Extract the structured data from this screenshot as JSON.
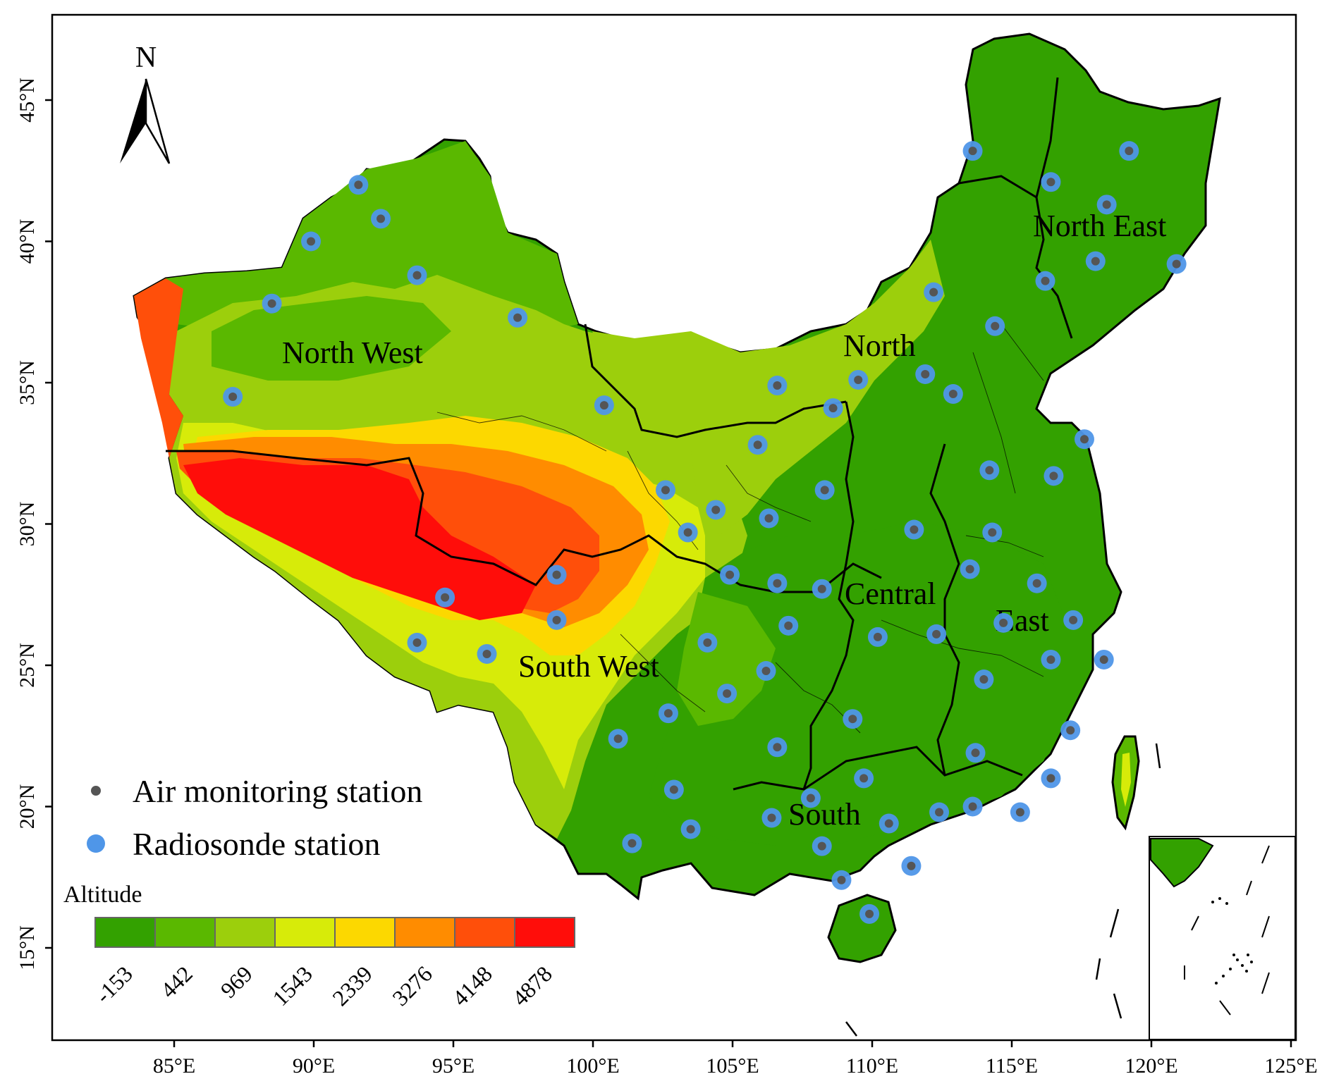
{
  "colors": {
    "alt_0": "#33a100",
    "alt_1": "#5ab800",
    "alt_2": "#9ccf0c",
    "alt_3": "#d7eb09",
    "alt_4": "#fcd800",
    "alt_5": "#ff8c00",
    "alt_6": "#ff4f0a",
    "alt_7": "#ff0d0a",
    "air_station": "#555555",
    "radiosonde": "#4f96e8",
    "boundary": "#000000"
  },
  "north_arrow": {
    "label": "N"
  },
  "lat_axis": [
    "15°N",
    "20°N",
    "25°N",
    "30°N",
    "35°N",
    "40°N",
    "45°N"
  ],
  "lon_axis": [
    "85°E",
    "90°E",
    "95°E",
    "100°E",
    "105°E",
    "110°E",
    "115°E",
    "120°E",
    "125°E"
  ],
  "regions": {
    "north_west": "North West",
    "north": "North",
    "north_east": "North East",
    "central": "Central",
    "east": "East",
    "south_west": "South West",
    "south": "South"
  },
  "legend": {
    "air_station": "Air monitoring station",
    "radiosonde": "Radiosonde station",
    "altitude_title": "Altitude",
    "altitude_breaks": [
      "-153",
      "442",
      "969",
      "1543",
      "2339",
      "3276",
      "4148",
      "4878"
    ]
  },
  "stations": [
    {
      "lon": 91.6,
      "lat": 42.0
    },
    {
      "lon": 92.4,
      "lat": 40.8
    },
    {
      "lon": 89.9,
      "lat": 40.0
    },
    {
      "lon": 93.7,
      "lat": 38.8
    },
    {
      "lon": 88.5,
      "lat": 37.8
    },
    {
      "lon": 97.3,
      "lat": 37.3
    },
    {
      "lon": 87.1,
      "lat": 34.5
    },
    {
      "lon": 100.4,
      "lat": 34.2
    },
    {
      "lon": 113.6,
      "lat": 43.2
    },
    {
      "lon": 119.2,
      "lat": 43.2
    },
    {
      "lon": 116.4,
      "lat": 42.1
    },
    {
      "lon": 118.4,
      "lat": 41.3
    },
    {
      "lon": 118.0,
      "lat": 39.3
    },
    {
      "lon": 120.9,
      "lat": 39.2
    },
    {
      "lon": 116.2,
      "lat": 38.6
    },
    {
      "lon": 112.2,
      "lat": 38.2
    },
    {
      "lon": 114.4,
      "lat": 37.0
    },
    {
      "lon": 106.6,
      "lat": 34.9
    },
    {
      "lon": 109.5,
      "lat": 35.1
    },
    {
      "lon": 111.9,
      "lat": 35.3
    },
    {
      "lon": 112.9,
      "lat": 34.6
    },
    {
      "lon": 108.6,
      "lat": 34.1
    },
    {
      "lon": 117.6,
      "lat": 33.0
    },
    {
      "lon": 105.9,
      "lat": 32.8
    },
    {
      "lon": 102.6,
      "lat": 31.2
    },
    {
      "lon": 108.3,
      "lat": 31.2
    },
    {
      "lon": 114.2,
      "lat": 31.9
    },
    {
      "lon": 116.5,
      "lat": 31.7
    },
    {
      "lon": 104.4,
      "lat": 30.5
    },
    {
      "lon": 106.3,
      "lat": 30.2
    },
    {
      "lon": 103.4,
      "lat": 29.7
    },
    {
      "lon": 111.5,
      "lat": 29.8
    },
    {
      "lon": 114.3,
      "lat": 29.7
    },
    {
      "lon": 98.7,
      "lat": 28.2
    },
    {
      "lon": 104.9,
      "lat": 28.2
    },
    {
      "lon": 106.6,
      "lat": 27.9
    },
    {
      "lon": 108.2,
      "lat": 27.7
    },
    {
      "lon": 113.5,
      "lat": 28.4
    },
    {
      "lon": 115.9,
      "lat": 27.9
    },
    {
      "lon": 94.7,
      "lat": 27.4
    },
    {
      "lon": 98.7,
      "lat": 26.6
    },
    {
      "lon": 107.0,
      "lat": 26.4
    },
    {
      "lon": 117.2,
      "lat": 26.6
    },
    {
      "lon": 93.7,
      "lat": 25.8
    },
    {
      "lon": 96.2,
      "lat": 25.4
    },
    {
      "lon": 104.1,
      "lat": 25.8
    },
    {
      "lon": 110.2,
      "lat": 26.0
    },
    {
      "lon": 112.3,
      "lat": 26.1
    },
    {
      "lon": 114.7,
      "lat": 26.5
    },
    {
      "lon": 116.4,
      "lat": 25.2
    },
    {
      "lon": 118.3,
      "lat": 25.2
    },
    {
      "lon": 106.2,
      "lat": 24.8
    },
    {
      "lon": 114.0,
      "lat": 24.5
    },
    {
      "lon": 104.8,
      "lat": 24.0
    },
    {
      "lon": 102.7,
      "lat": 23.3
    },
    {
      "lon": 109.3,
      "lat": 23.1
    },
    {
      "lon": 100.9,
      "lat": 22.4
    },
    {
      "lon": 117.1,
      "lat": 22.7
    },
    {
      "lon": 106.6,
      "lat": 22.1
    },
    {
      "lon": 113.7,
      "lat": 21.9
    },
    {
      "lon": 109.7,
      "lat": 21.0
    },
    {
      "lon": 116.4,
      "lat": 21.0
    },
    {
      "lon": 102.9,
      "lat": 20.6
    },
    {
      "lon": 107.8,
      "lat": 20.3
    },
    {
      "lon": 113.6,
      "lat": 20.0
    },
    {
      "lon": 106.4,
      "lat": 19.6
    },
    {
      "lon": 110.6,
      "lat": 19.4
    },
    {
      "lon": 112.4,
      "lat": 19.8
    },
    {
      "lon": 115.3,
      "lat": 19.8
    },
    {
      "lon": 103.5,
      "lat": 19.2
    },
    {
      "lon": 101.4,
      "lat": 18.7
    },
    {
      "lon": 108.2,
      "lat": 18.6
    },
    {
      "lon": 111.4,
      "lat": 17.9
    },
    {
      "lon": 108.9,
      "lat": 17.4
    },
    {
      "lon": 109.9,
      "lat": 16.2
    }
  ]
}
